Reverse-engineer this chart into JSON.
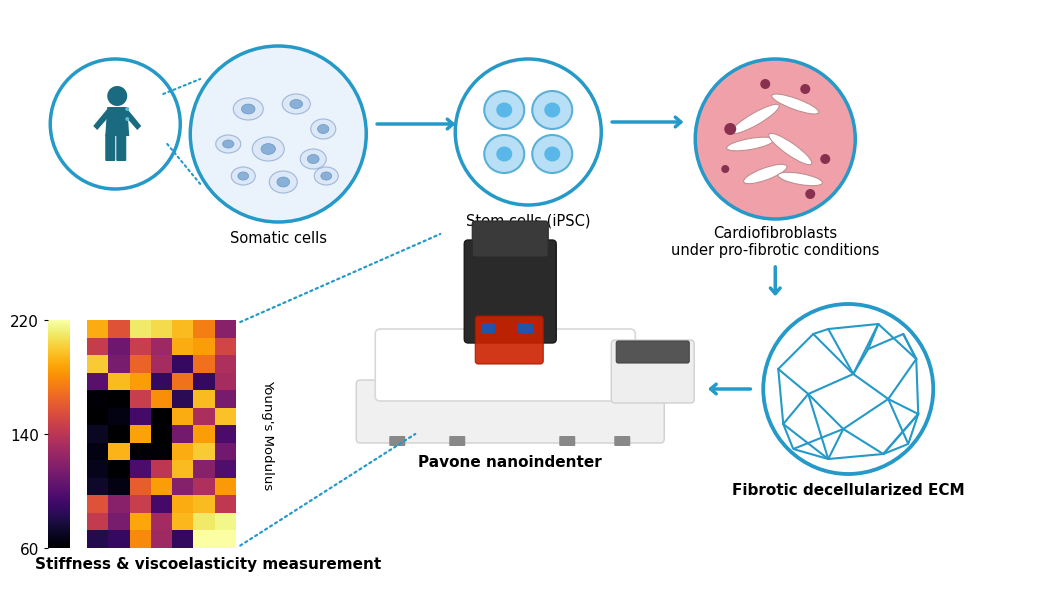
{
  "bg_color": "#ffffff",
  "arrow_color": "#2599c8",
  "arrow_lw": 2.5,
  "label_fontsize": 10.5,
  "bold_label_fontsize": 11,
  "circle_color": "#2599c8",
  "circle_lw": 2.5,
  "heatmap_yticks": [
    60,
    140,
    220
  ],
  "heatmap_ylabel": "Young's Modulus",
  "bottom_labels": {
    "stiffness": "Stiffness & viscoelasticity measurement",
    "pavone": "Pavone nanoindenter",
    "ecm": "Fibrotic decellularized ECM"
  },
  "top_labels": {
    "somatic": "Somatic cells",
    "stem": "Stem cells (iPSC)",
    "cardio": "Cardiofibroblasts\nunder pro-fibrotic conditions"
  },
  "human_color": "#1b6b80",
  "somatic_fill": "#eaf2fb",
  "stem_fill": "#ffffff",
  "cardio_fill": "#f0a0a8",
  "ecm_fill": "#ffffff",
  "ecm_line_color": "#2599c8",
  "dot_color": "#2599c8"
}
